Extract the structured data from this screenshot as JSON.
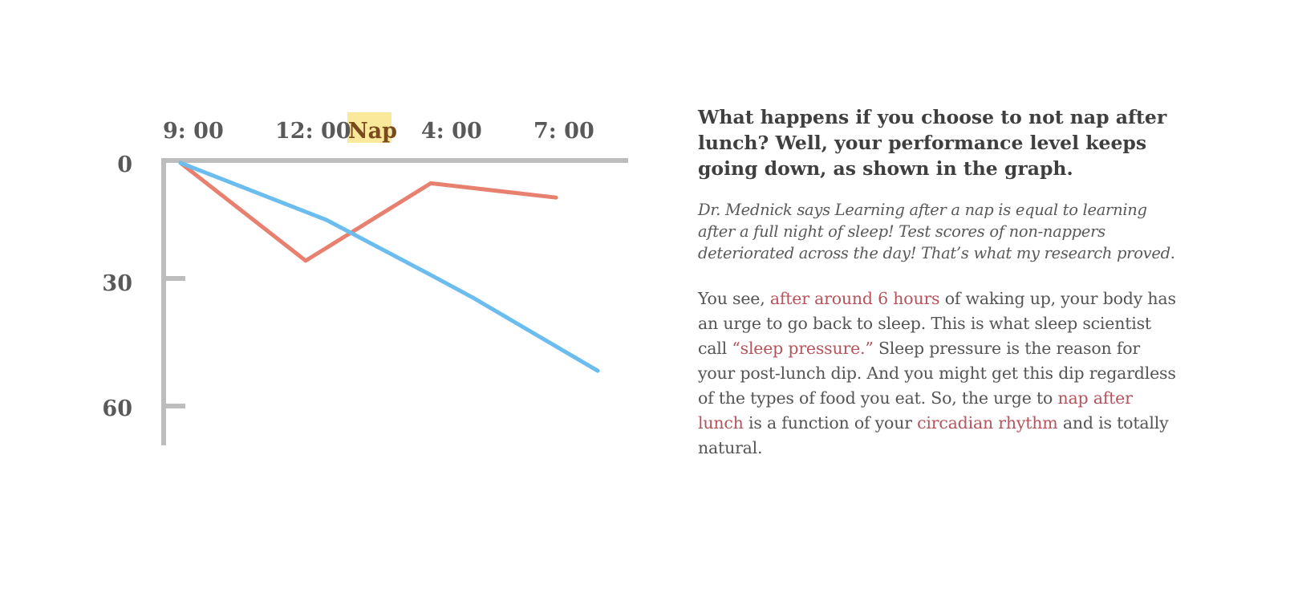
{
  "colors": {
    "axis": "#bdbdbd",
    "nap_series": "#e8806f",
    "no_nap_series": "#6bbcef",
    "nap_highlight": "#fbe99b",
    "link_text": "#b5545c"
  },
  "chart_data": {
    "type": "line",
    "x_labels": [
      "9: 00",
      "12: 00",
      "Nap",
      "4: 00",
      "7: 00"
    ],
    "highlighted_x_label": "Nap",
    "y_ticks": [
      "0",
      "30",
      "60"
    ],
    "y_inverted": true,
    "ylim": [
      0,
      70
    ],
    "series": [
      {
        "color": "#e8806f",
        "points": [
          [
            9,
            0
          ],
          [
            12,
            24
          ],
          [
            15,
            5
          ],
          [
            18,
            8.5
          ]
        ]
      },
      {
        "color": "#6bbcef",
        "points": [
          [
            9,
            0
          ],
          [
            12.5,
            14
          ],
          [
            15,
            27.5
          ],
          [
            16,
            33
          ],
          [
            19,
            51
          ]
        ]
      }
    ],
    "grid": false,
    "legend": "none"
  },
  "text": {
    "headline": "What happens if you choose to not nap after lunch? Well, your performance level keeps going down, as shown in the graph.",
    "quote": "Dr. Mednick says Learning after a nap is equal to learning after a full night of sleep! Test scores of non-nappers deteriorated across the day! That’s what my research proved.",
    "body": {
      "p1": "You see, ",
      "l1": "after around 6 hours",
      "p2": " of waking up, your body has an urge to go back to sleep. This is what sleep scientist call ",
      "l2": "“sleep pressure.”",
      "p3": "  Sleep pressure is the reason for your post-lunch dip. And you might get this dip regardless of the types of food you eat. So, the urge to ",
      "l3": "nap after lunch",
      "p4": " is a function of your ",
      "l4": "circadian rhythm",
      "p5": " and is totally natural."
    }
  }
}
